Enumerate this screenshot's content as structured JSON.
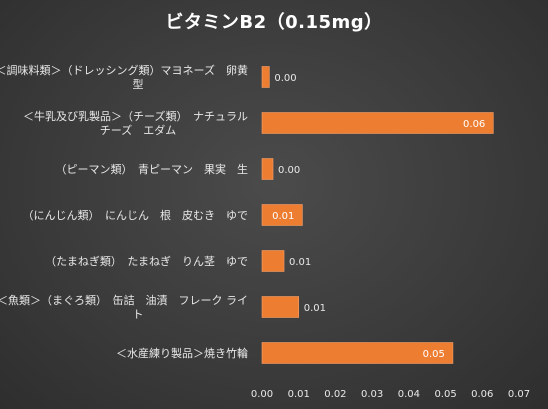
{
  "chart_data": {
    "type": "bar",
    "orientation": "horizontal",
    "title": "ビタミンB2（0.15mg）",
    "categories": [
      [
        "＜調味料類＞（ドレッシング類）マヨネーズ　卵黄",
        "型"
      ],
      [
        "＜牛乳及び乳製品＞（チーズ類）　ナチュラル",
        "チーズ　エダム"
      ],
      [
        "（ピーマン類）　青ピーマン　果実　生"
      ],
      [
        "（にんじん類）　にんじん　根　皮むき　ゆで"
      ],
      [
        "（たまねぎ類）　たまねぎ　りん茎　ゆで"
      ],
      [
        "＜魚類＞（まぐろ類）　缶詰　油漬　フレーク ライ",
        "ト"
      ],
      [
        "＜水産練り製品＞焼き竹輪"
      ]
    ],
    "values": [
      0.002,
      0.063,
      0.003,
      0.011,
      0.006,
      0.01,
      0.052
    ],
    "data_labels": [
      "0.00",
      "0.06",
      "0.00",
      "0.01",
      "0.01",
      "0.01",
      "0.05"
    ],
    "x_ticks": [
      "0.00",
      "0.01",
      "0.02",
      "0.03",
      "0.04",
      "0.05",
      "0.06",
      "0.07"
    ],
    "xlim": [
      0,
      0.07
    ],
    "xlabel": "",
    "ylabel": "",
    "grid": false,
    "legend": "none",
    "colors": {
      "bar_fill": "#ed7d31",
      "bar_edge": "#f4a06a",
      "background": "#3a3a3a",
      "text": "#e8e8e8"
    }
  }
}
